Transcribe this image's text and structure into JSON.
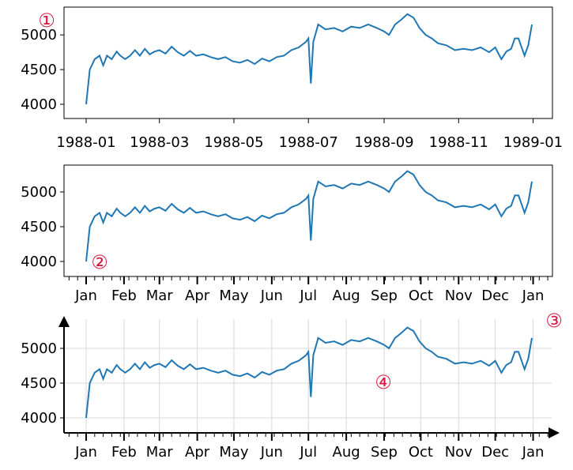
{
  "chart_data": {
    "type": "line",
    "title": "",
    "xlabel": "",
    "ylabel": "",
    "x_range": [
      "1988-01-01",
      "1988-12-31"
    ],
    "ylim": [
      3770,
      5400
    ],
    "yticks": [
      4000,
      4500,
      5000
    ],
    "line_color": "#1f77b4",
    "marker_color": "#dc143c",
    "series": [
      {
        "x": [
          "1988-01-01",
          "1988-01-04",
          "1988-01-08",
          "1988-01-12",
          "1988-01-15",
          "1988-01-18",
          "1988-01-22",
          "1988-01-26",
          "1988-01-29",
          "1988-02-02",
          "1988-02-06",
          "1988-02-10",
          "1988-02-14",
          "1988-02-18",
          "1988-02-22",
          "1988-02-26",
          "1988-03-01",
          "1988-03-06",
          "1988-03-11",
          "1988-03-16",
          "1988-03-21",
          "1988-03-26",
          "1988-03-31",
          "1988-04-06",
          "1988-04-12",
          "1988-04-18",
          "1988-04-24",
          "1988-04-30",
          "1988-05-06",
          "1988-05-12",
          "1988-05-18",
          "1988-05-24",
          "1988-05-30",
          "1988-06-05",
          "1988-06-11",
          "1988-06-17",
          "1988-06-23",
          "1988-06-29",
          "1988-07-01",
          "1988-07-03",
          "1988-07-05",
          "1988-07-09",
          "1988-07-15",
          "1988-07-22",
          "1988-07-29",
          "1988-08-05",
          "1988-08-12",
          "1988-08-19",
          "1988-08-26",
          "1988-09-01",
          "1988-09-05",
          "1988-09-10",
          "1988-09-15",
          "1988-09-20",
          "1988-09-25",
          "1988-09-30",
          "1988-10-05",
          "1988-10-10",
          "1988-10-15",
          "1988-10-22",
          "1988-10-29",
          "1988-11-05",
          "1988-11-12",
          "1988-11-19",
          "1988-11-26",
          "1988-12-01",
          "1988-12-06",
          "1988-12-10",
          "1988-12-14",
          "1988-12-17",
          "1988-12-20",
          "1988-12-22",
          "1988-12-25",
          "1988-12-28",
          "1988-12-31"
        ],
        "y": [
          4000,
          4500,
          4650,
          4700,
          4560,
          4700,
          4650,
          4760,
          4700,
          4650,
          4700,
          4780,
          4700,
          4800,
          4720,
          4760,
          4780,
          4730,
          4830,
          4750,
          4700,
          4770,
          4700,
          4720,
          4680,
          4650,
          4680,
          4620,
          4600,
          4640,
          4580,
          4660,
          4620,
          4680,
          4700,
          4780,
          4820,
          4900,
          4950,
          4300,
          4900,
          5150,
          5080,
          5100,
          5050,
          5120,
          5100,
          5150,
          5100,
          5050,
          5000,
          5150,
          5220,
          5300,
          5250,
          5100,
          5000,
          4950,
          4880,
          4850,
          4780,
          4800,
          4780,
          4820,
          4750,
          4820,
          4650,
          4760,
          4800,
          4950,
          4950,
          4850,
          4700,
          4850,
          5150
        ]
      }
    ],
    "axes": [
      {
        "xtick_labels": [
          "1988-01",
          "1988-03",
          "1988-05",
          "1988-07",
          "1988-09",
          "1988-11",
          "1989-01"
        ],
        "ytick_labels": [
          "4000",
          "4500",
          "5000"
        ],
        "marker": "①"
      },
      {
        "xtick_labels": [
          "Jan",
          "Feb",
          "Mar",
          "Apr",
          "May",
          "Jun",
          "Jul",
          "Aug",
          "Sep",
          "Oct",
          "Nov",
          "Dec",
          "Jan"
        ],
        "ytick_labels": [
          "4000",
          "4500",
          "5000"
        ],
        "marker": "②"
      },
      {
        "xtick_labels": [
          "Jan",
          "Feb",
          "Mar",
          "Apr",
          "May",
          "Jun",
          "Jul",
          "Aug",
          "Sep",
          "Oct",
          "Nov",
          "Dec",
          "Jan"
        ],
        "ytick_labels": [
          "4000",
          "4500",
          "5000"
        ],
        "markers": [
          "③",
          "④"
        ],
        "grid": true
      }
    ]
  }
}
